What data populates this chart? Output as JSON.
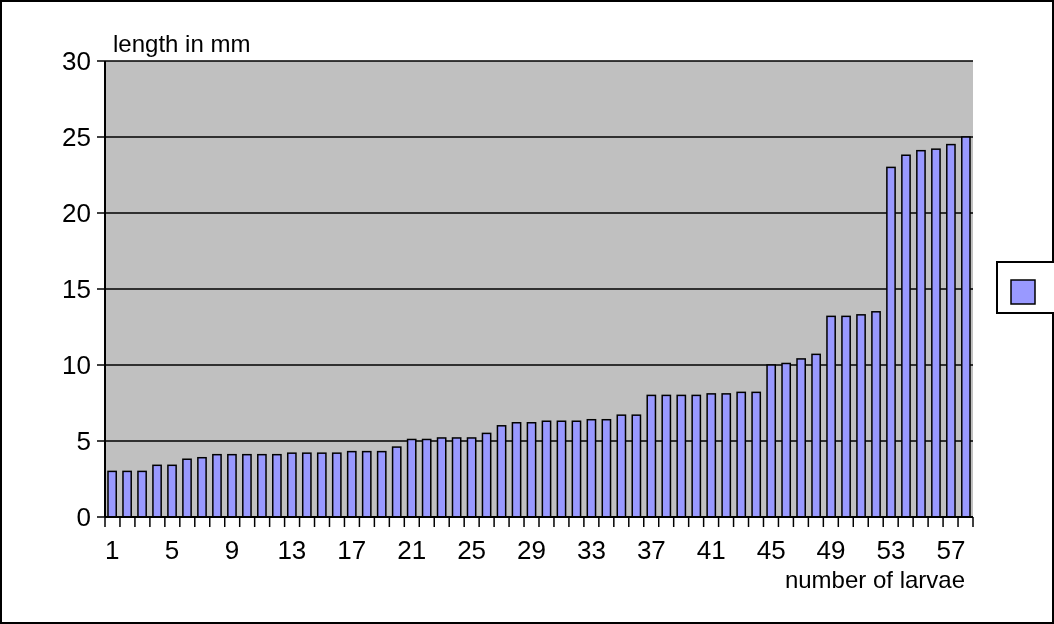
{
  "chart_data": {
    "type": "bar",
    "xlabel": "number of larvae",
    "ylabel": "length in mm",
    "categories": [
      "1",
      null,
      null,
      null,
      "5",
      null,
      null,
      null,
      "9",
      null,
      null,
      null,
      "13",
      null,
      null,
      null,
      "17",
      null,
      null,
      null,
      "21",
      null,
      null,
      null,
      "25",
      null,
      null,
      null,
      "29",
      null,
      null,
      null,
      "33",
      null,
      null,
      null,
      "37",
      null,
      null,
      null,
      "41",
      null,
      null,
      null,
      "45",
      null,
      null,
      null,
      "49",
      null,
      null,
      null,
      "53",
      null,
      null,
      null,
      "57",
      null
    ],
    "series": [
      {
        "color": "#9999ff",
        "values": [
          3.0,
          3.0,
          3.0,
          3.4,
          3.4,
          3.8,
          3.9,
          4.1,
          4.1,
          4.1,
          4.1,
          4.1,
          4.2,
          4.2,
          4.2,
          4.2,
          4.3,
          4.3,
          4.3,
          4.6,
          5.1,
          5.1,
          5.2,
          5.2,
          5.2,
          5.5,
          6.0,
          6.2,
          6.2,
          6.3,
          6.3,
          6.3,
          6.4,
          6.4,
          6.7,
          6.7,
          8.0,
          8.0,
          8.0,
          8.0,
          8.1,
          8.1,
          8.2,
          8.2,
          10.0,
          10.1,
          10.4,
          10.7,
          13.2,
          13.2,
          13.3,
          13.5,
          23.0,
          23.8,
          24.1,
          24.2,
          24.5,
          25.0
        ]
      }
    ],
    "ylim": [
      0,
      30
    ],
    "yticks": [
      0,
      5,
      10,
      15,
      20,
      25,
      30
    ],
    "grid": "y"
  }
}
